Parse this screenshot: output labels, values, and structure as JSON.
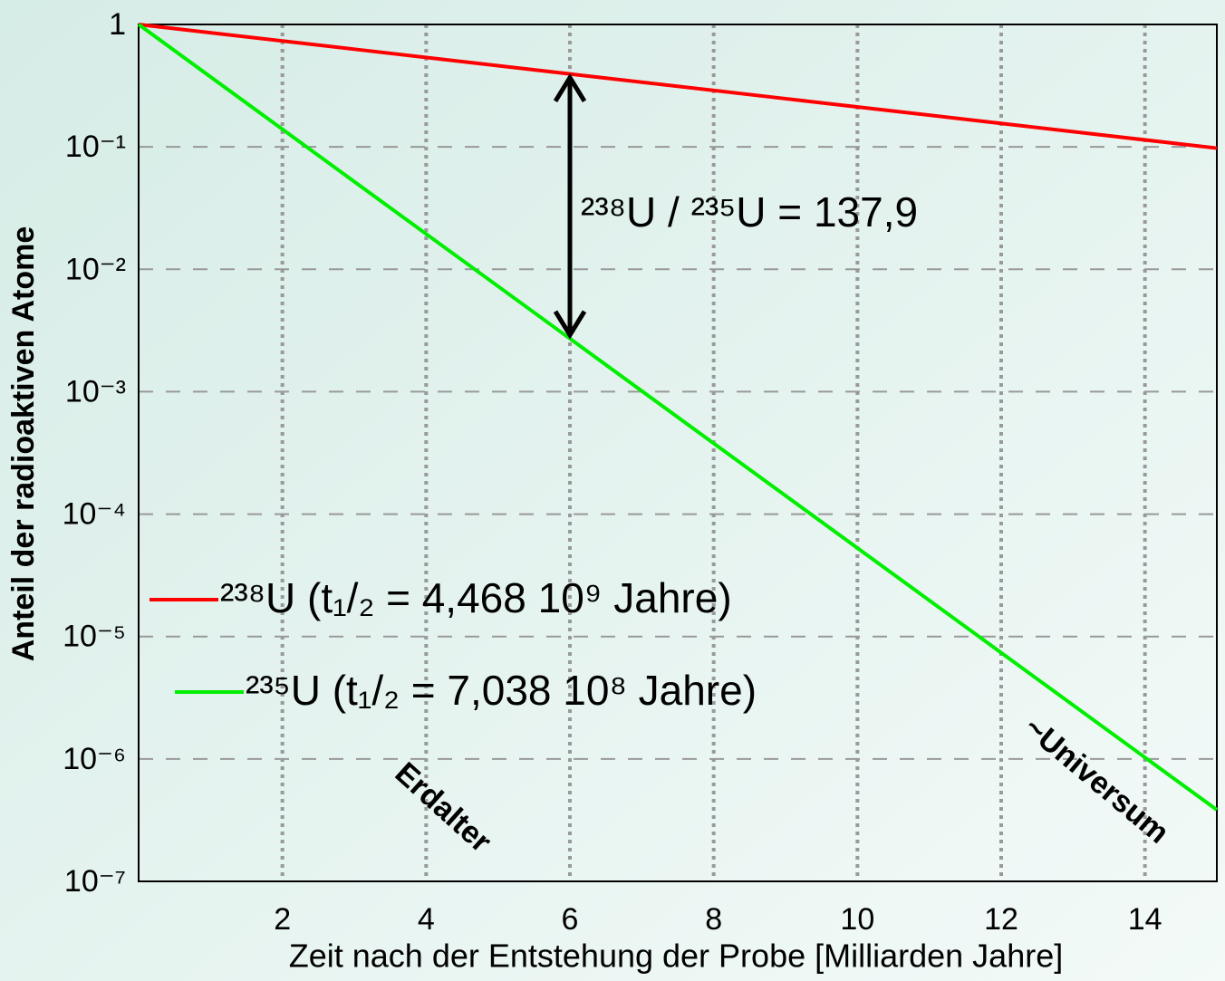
{
  "chart_data": {
    "type": "line",
    "ylabel": "Anteil der radioaktiven Atome",
    "xlabel": "Zeit nach der Entstehung der Probe [Milliarden Jahre]",
    "x": [
      0,
      3,
      6,
      9,
      12,
      15
    ],
    "series": [
      {
        "name": "²³⁸U (t₁/₂ = 4,468 10⁹ Jahre)",
        "color": "#ff0000",
        "values": [
          1,
          0.628,
          0.394,
          0.2476,
          0.1554,
          0.0976
        ]
      },
      {
        "name": "²³⁵U (t₁/₂ = 7,038 10⁸ Jahre)",
        "color": "#00ee00",
        "values": [
          1,
          0.052,
          0.002715,
          0.00014135,
          7.37e-06,
          3.84e-07
        ]
      }
    ],
    "xlim": [
      0,
      15
    ],
    "xticks": [
      2,
      4,
      6,
      8,
      10,
      12,
      14
    ],
    "ylim": [
      1e-07,
      1
    ],
    "yticks": [
      1,
      {
        "value": 0.1,
        "label": "10⁻¹"
      },
      {
        "value": 0.01,
        "label": "10⁻²"
      },
      {
        "value": 0.001,
        "label": "10⁻³"
      },
      {
        "value": 0.0001,
        "label": "10⁻⁴"
      },
      {
        "value": 1e-05,
        "label": "10⁻⁵"
      },
      {
        "value": 1e-06,
        "label": "10⁻⁶"
      },
      {
        "value": 1e-07,
        "label": "10⁻⁷"
      }
    ],
    "log_y": true,
    "grid": true,
    "legend": "center left",
    "annotations": [
      "²³⁸U / ²³⁵U = 137,9",
      "Erdalter",
      "~Universum"
    ]
  }
}
